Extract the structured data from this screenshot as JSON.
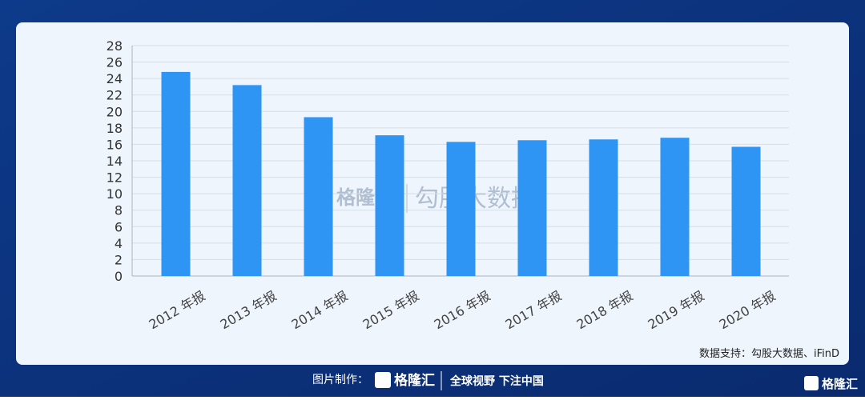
{
  "chart_data": {
    "type": "bar",
    "categories": [
      "2012 年报",
      "2013 年报",
      "2014 年报",
      "2015 年报",
      "2016 年报",
      "2017 年报",
      "2018 年报",
      "2019 年报",
      "2020 年报"
    ],
    "values": [
      24.8,
      23.2,
      19.3,
      17.1,
      16.3,
      16.5,
      16.6,
      16.8,
      15.7
    ],
    "color": "#2e95f5",
    "ylim": [
      0,
      28
    ],
    "yticks": [
      0,
      2,
      4,
      6,
      8,
      10,
      12,
      14,
      16,
      18,
      20,
      22,
      24,
      26,
      28
    ],
    "grid": true,
    "source": "数据支持：勾股大数据、iFinD"
  },
  "watermark": {
    "brand": "格隆汇",
    "partner": "勾股大数据"
  },
  "footer": {
    "made_by": "图片制作：",
    "brand": "格隆汇",
    "slogan": "全球视野 下注中国",
    "corner_logo": "格隆汇"
  }
}
